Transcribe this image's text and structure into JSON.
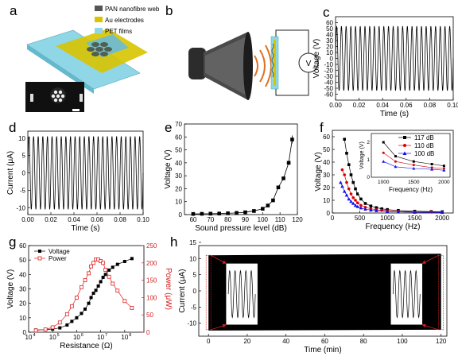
{
  "panels": {
    "a": {
      "label": "a",
      "legend": [
        {
          "text": "PAN nanofibre web",
          "color": "#555555"
        },
        {
          "text": "Au electrodes",
          "color": "#d8c400"
        },
        {
          "text": "PET films",
          "color": "#8fd6e6"
        }
      ]
    },
    "b": {
      "label": "b",
      "meter": "V"
    },
    "c": {
      "label": "c"
    },
    "d": {
      "label": "d"
    },
    "e": {
      "label": "e"
    },
    "f": {
      "label": "f"
    },
    "g": {
      "label": "g"
    },
    "h": {
      "label": "h"
    }
  },
  "chart_data": [
    {
      "id": "c",
      "type": "line",
      "xlabel": "Time (s)",
      "ylabel": "Voltage (V)",
      "xlim": [
        0,
        0.1
      ],
      "ylim": [
        -70,
        70
      ],
      "xticks": [
        "0.00",
        "0.02",
        "0.04",
        "0.06",
        "0.08",
        "0.10"
      ],
      "yticks": [
        "-60",
        "-50",
        "-40",
        "-30",
        "-20",
        "-10",
        "0",
        "10",
        "20",
        "30",
        "40",
        "50",
        "60"
      ],
      "signal": {
        "shape": "sine",
        "cycles": 25,
        "amplitude": 54
      }
    },
    {
      "id": "d",
      "type": "line",
      "xlabel": "Time (s)",
      "ylabel": "Current (μA)",
      "xlim": [
        0,
        0.1
      ],
      "ylim": [
        -12,
        12
      ],
      "xticks": [
        "0.00",
        "0.02",
        "0.04",
        "0.06",
        "0.08",
        "0.10"
      ],
      "yticks": [
        "-10",
        "-5",
        "0",
        "5",
        "10"
      ],
      "signal": {
        "shape": "sine",
        "cycles": 25,
        "amplitude": 10.5
      }
    },
    {
      "id": "e",
      "type": "scatter",
      "xlabel": "Sound pressure level (dB)",
      "ylabel": "Voltage (V)",
      "xlim": [
        55,
        120
      ],
      "ylim": [
        0,
        70
      ],
      "xticks": [
        "60",
        "70",
        "80",
        "90",
        "100",
        "110",
        "120"
      ],
      "yticks": [
        "0",
        "10",
        "20",
        "30",
        "40",
        "50",
        "60",
        "70"
      ],
      "x": [
        60,
        65,
        70,
        75,
        80,
        85,
        90,
        95,
        100,
        103,
        106,
        109,
        112,
        115,
        117
      ],
      "y": [
        0.5,
        0.6,
        0.7,
        0.8,
        1.0,
        1.3,
        1.8,
        2.8,
        4.5,
        7,
        11,
        21,
        28,
        40,
        58
      ]
    },
    {
      "id": "f",
      "type": "scatter",
      "xlabel": "Frequency (Hz)",
      "ylabel": "Voltage (V)",
      "xlim": [
        0,
        2200
      ],
      "ylim": [
        0,
        65
      ],
      "xticks": [
        "0",
        "500",
        "1000",
        "1500",
        "2000"
      ],
      "yticks": [
        "0",
        "10",
        "20",
        "30",
        "40",
        "50",
        "60"
      ],
      "series": [
        {
          "name": "117 dB",
          "color": "#000000",
          "marker": "square",
          "x": [
            220,
            260,
            300,
            340,
            380,
            420,
            460,
            520,
            600,
            700,
            800,
            900,
            1000,
            1200,
            1500,
            1800,
            2000
          ],
          "y": [
            58,
            47,
            38,
            30,
            24,
            19,
            15,
            11,
            7.5,
            5.5,
            4.2,
            3.3,
            2.7,
            2.0,
            1.4,
            1.1,
            1.0
          ]
        },
        {
          "name": "110 dB",
          "color": "#dd0000",
          "marker": "circle",
          "x": [
            180,
            220,
            260,
            300,
            340,
            380,
            420,
            460,
            520,
            600,
            700,
            800,
            900,
            1000,
            1200,
            1500,
            1800,
            2000
          ],
          "y": [
            34,
            30,
            24,
            19,
            15,
            12,
            10,
            8,
            6,
            4.5,
            3.3,
            2.6,
            2.1,
            1.7,
            1.2,
            0.9,
            0.7,
            0.6
          ]
        },
        {
          "name": "100 dB",
          "color": "#1010ee",
          "marker": "triangle",
          "x": [
            150,
            180,
            220,
            260,
            300,
            340,
            380,
            420,
            460,
            520,
            600,
            700,
            800,
            1000,
            1200,
            1500,
            2000
          ],
          "y": [
            24,
            21,
            17,
            14,
            11,
            9,
            7.5,
            6,
            5,
            4,
            3,
            2.3,
            1.8,
            1.2,
            0.9,
            0.6,
            0.4
          ]
        }
      ],
      "inset": {
        "xlabel": "Frequency (Hz)",
        "ylabel": "Voltage (V)",
        "xlim": [
          800,
          2100
        ],
        "ylim": [
          0,
          2.5
        ],
        "xticks": [
          "1000",
          "1500",
          "2000"
        ],
        "yticks": [
          "0",
          "1",
          "2"
        ],
        "series": [
          {
            "name": "117 dB",
            "x": [
              1000,
              1200,
              1500,
              1800,
              2000
            ],
            "y": [
              2.0,
              1.2,
              0.9,
              0.75,
              0.65
            ]
          },
          {
            "name": "110 dB",
            "x": [
              1000,
              1200,
              1500,
              1800,
              2000
            ],
            "y": [
              1.4,
              0.9,
              0.7,
              0.55,
              0.5
            ]
          },
          {
            "name": "100 dB",
            "x": [
              1000,
              1200,
              1500,
              1800,
              2000
            ],
            "y": [
              0.9,
              0.6,
              0.5,
              0.45,
              0.4
            ]
          }
        ]
      }
    },
    {
      "id": "g",
      "type": "scatter",
      "xlabel": "Resistance (Ω)",
      "ylabel": "Voltage (V)",
      "y2label": "Power (μW)",
      "xscale": "log",
      "xlim": [
        4,
        8.8
      ],
      "ylim": [
        0,
        60
      ],
      "y2lim": [
        0,
        250
      ],
      "xticks": [
        "10",
        "10",
        "10",
        "10",
        "10"
      ],
      "xtick_exp": [
        "4",
        "5",
        "6",
        "7",
        "8"
      ],
      "yticks": [
        "0",
        "10",
        "20",
        "30",
        "40",
        "50",
        "60"
      ],
      "y2ticks": [
        "0",
        "50",
        "100",
        "150",
        "200",
        "250"
      ],
      "series": [
        {
          "name": "Voltage",
          "color": "#000000",
          "marker": "square",
          "axis": "left",
          "logx": [
            4.3,
            4.7,
            5.0,
            5.3,
            5.6,
            5.8,
            6.0,
            6.2,
            6.35,
            6.5,
            6.6,
            6.7,
            6.8,
            6.9,
            7.0,
            7.1,
            7.2,
            7.35,
            7.5,
            7.7,
            8.0,
            8.3
          ],
          "y": [
            1.5,
            1.8,
            2.2,
            3.0,
            5.0,
            7.5,
            10,
            13,
            16,
            20,
            24,
            27,
            29,
            32,
            35,
            38,
            40,
            43,
            45,
            47,
            49,
            51
          ]
        },
        {
          "name": "Power",
          "color": "#dd2222",
          "marker": "open-square",
          "axis": "right",
          "logx": [
            4.3,
            4.7,
            5.0,
            5.3,
            5.6,
            5.8,
            6.0,
            6.2,
            6.35,
            6.5,
            6.6,
            6.7,
            6.8,
            6.9,
            7.0,
            7.1,
            7.2,
            7.35,
            7.5,
            7.7,
            8.0,
            8.3
          ],
          "y": [
            5,
            8,
            14,
            28,
            52,
            75,
            100,
            130,
            150,
            170,
            190,
            200,
            210,
            210,
            205,
            200,
            180,
            160,
            140,
            120,
            90,
            70
          ]
        }
      ]
    },
    {
      "id": "h",
      "type": "line",
      "xlabel": "Time (min)",
      "ylabel": "Current (μA)",
      "xlim": [
        -5,
        123
      ],
      "ylim": [
        -14,
        14
      ],
      "xticks": [
        "0",
        "20",
        "40",
        "60",
        "80",
        "100",
        "120"
      ],
      "yticks": [
        "-10",
        "-5",
        "0",
        "5",
        "10",
        "15"
      ],
      "envelope": {
        "x": [
          0,
          120
        ],
        "upper": 11,
        "lower": -12
      },
      "insets": 2
    }
  ]
}
